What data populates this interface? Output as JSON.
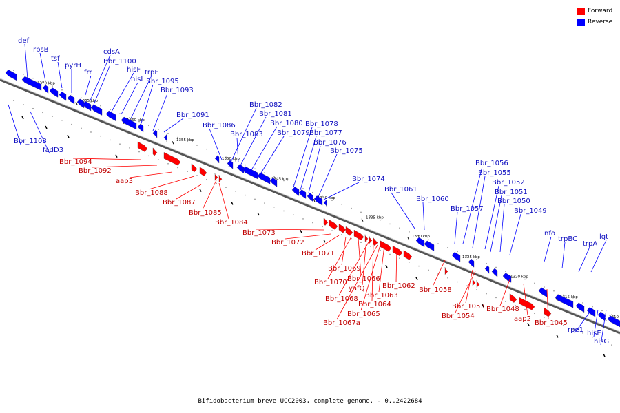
{
  "caption": "Bifidobacterium breve UCC2003, complete genome. - 0..2422684",
  "legend": {
    "forward_label": "Forward",
    "reverse_label": "Reverse",
    "forward_color": "#ff0000",
    "reverse_color": "#0000ff"
  },
  "ticks": [
    "1370 kbp",
    "1365 kbp",
    "1360 kbp",
    "1355 kbp",
    "1350 kbp",
    "1345 kbp",
    "1340 kbp",
    "1335 kbp",
    "1330 kbp",
    "1325 kbp",
    "1320 kbp",
    "1315 kbp",
    "1310 kbp"
  ],
  "forward_genes": [
    "Bbr_1094",
    "Bbr_1092",
    "aap3",
    "Bbr_1088",
    "Bbr_1087",
    "Bbr_1085",
    "Bbr_1084",
    "Bbr_1073",
    "Bbr_1072",
    "Bbr_1071",
    "Bbr_1069",
    "Bbr_1070",
    "Bbr_1066",
    "yafQ",
    "Bbr_1068",
    "Bbr_1063",
    "Bbr_1062",
    "Bbr_1064",
    "Bbr_1065",
    "Bbr_1067a",
    "Bbr_1058",
    "Bbr_1053",
    "Bbr_1054",
    "Bbr_1048",
    "aap2",
    "Bbr_1045"
  ],
  "reverse_genes": [
    "def",
    "rpsB",
    "tsf",
    "pyrH",
    "frr",
    "cdsA",
    "Bbr_1100",
    "hisF",
    "hisI",
    "trpE",
    "Bbr_1095",
    "Bbr_1093",
    "Bbr_1091",
    "Bbr_1086",
    "Bbr_1108",
    "fadD3",
    "Bbr_1082",
    "Bbr_1081",
    "Bbr_1080",
    "Bbr_1083",
    "Bbr_1079",
    "Bbr_1078",
    "Bbr_1077",
    "Bbr_1076",
    "Bbr_1075",
    "Bbr_1074",
    "Bbr_1061",
    "Bbr_1060",
    "Bbr_1057",
    "Bbr_1056",
    "Bbr_1055",
    "Bbr_1052",
    "Bbr_1051",
    "Bbr_1050",
    "Bbr_1049",
    "nfo",
    "trpBC",
    "trpA",
    "lgt",
    "rpe1",
    "hisE",
    "hisG"
  ]
}
